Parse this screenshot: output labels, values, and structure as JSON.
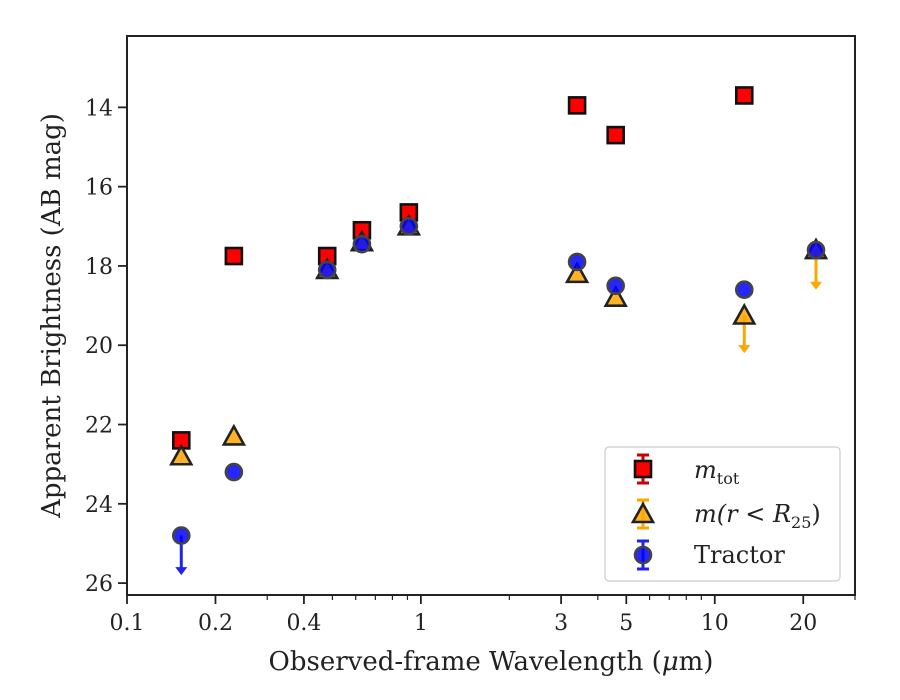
{
  "chart_data": {
    "type": "scatter",
    "title": "",
    "xlabel": "Observed-frame Wavelength (",
    "xlabel_mu": "μ",
    "xlabel_tail": "m)",
    "ylabel": "Apparent Brightness (AB mag)",
    "xscale": "log",
    "xlim": [
      0.1,
      30
    ],
    "ylim": [
      26.3,
      12.2
    ],
    "y_inverted": true,
    "x_major_ticks": [
      {
        "value": 0.1,
        "label": "0.1"
      },
      {
        "value": 0.2,
        "label": "0.2"
      },
      {
        "value": 0.4,
        "label": "0.4"
      },
      {
        "value": 1,
        "label": "1"
      },
      {
        "value": 3,
        "label": "3"
      },
      {
        "value": 5,
        "label": "5"
      },
      {
        "value": 10,
        "label": "10"
      },
      {
        "value": 20,
        "label": "20"
      }
    ],
    "x_minor_ticks": [
      0.3,
      0.5,
      0.6,
      0.7,
      0.8,
      0.9,
      2,
      4,
      6,
      7,
      8,
      9,
      30
    ],
    "y_ticks": [
      {
        "value": 14,
        "label": "14"
      },
      {
        "value": 16,
        "label": "16"
      },
      {
        "value": 18,
        "label": "18"
      },
      {
        "value": 20,
        "label": "20"
      },
      {
        "value": 22,
        "label": "22"
      },
      {
        "value": 24,
        "label": "24"
      },
      {
        "value": 26,
        "label": "26"
      }
    ],
    "legend_position": "bottom-right",
    "series": [
      {
        "name": "m_tot",
        "legend_main": "m",
        "legend_sub": "tot",
        "marker": "square",
        "color": "#ff0000",
        "errcolor": "#cc0000",
        "points": [
          {
            "x": 0.153,
            "y": 22.4
          },
          {
            "x": 0.231,
            "y": 17.75
          },
          {
            "x": 0.48,
            "y": 17.75
          },
          {
            "x": 0.63,
            "y": 17.1
          },
          {
            "x": 0.91,
            "y": 16.65
          },
          {
            "x": 3.4,
            "y": 13.95
          },
          {
            "x": 4.6,
            "y": 14.7
          },
          {
            "x": 12.6,
            "y": 13.7
          }
        ]
      },
      {
        "name": "m(r<R25)",
        "legend_text": "m(r < R",
        "legend_sub": "25",
        "legend_close": ")",
        "marker": "triangle",
        "color": "#ffa500",
        "errcolor": "#ffa500",
        "points": [
          {
            "x": 0.153,
            "y": 22.8
          },
          {
            "x": 0.231,
            "y": 22.3
          },
          {
            "x": 0.48,
            "y": 18.1
          },
          {
            "x": 0.63,
            "y": 17.4
          },
          {
            "x": 0.91,
            "y": 17.0
          },
          {
            "x": 3.4,
            "y": 18.2
          },
          {
            "x": 4.6,
            "y": 18.8
          },
          {
            "x": 12.6,
            "y": 19.25,
            "upper_limit": true,
            "limit_to": 20.2
          },
          {
            "x": 22.1,
            "y": 17.6,
            "upper_limit": true,
            "limit_to": 18.6
          }
        ]
      },
      {
        "name": "Tractor",
        "legend_text": "Tractor",
        "marker": "circle",
        "color": "#0000ff",
        "errcolor": "#2222ee",
        "points": [
          {
            "x": 0.153,
            "y": 24.8,
            "upper_limit": true,
            "limit_to": 25.8
          },
          {
            "x": 0.231,
            "y": 23.2
          },
          {
            "x": 0.48,
            "y": 18.1
          },
          {
            "x": 0.63,
            "y": 17.45
          },
          {
            "x": 0.91,
            "y": 17.0
          },
          {
            "x": 3.4,
            "y": 17.9
          },
          {
            "x": 4.6,
            "y": 18.5
          },
          {
            "x": 12.6,
            "y": 18.6
          },
          {
            "x": 22.1,
            "y": 17.6
          }
        ]
      }
    ]
  }
}
